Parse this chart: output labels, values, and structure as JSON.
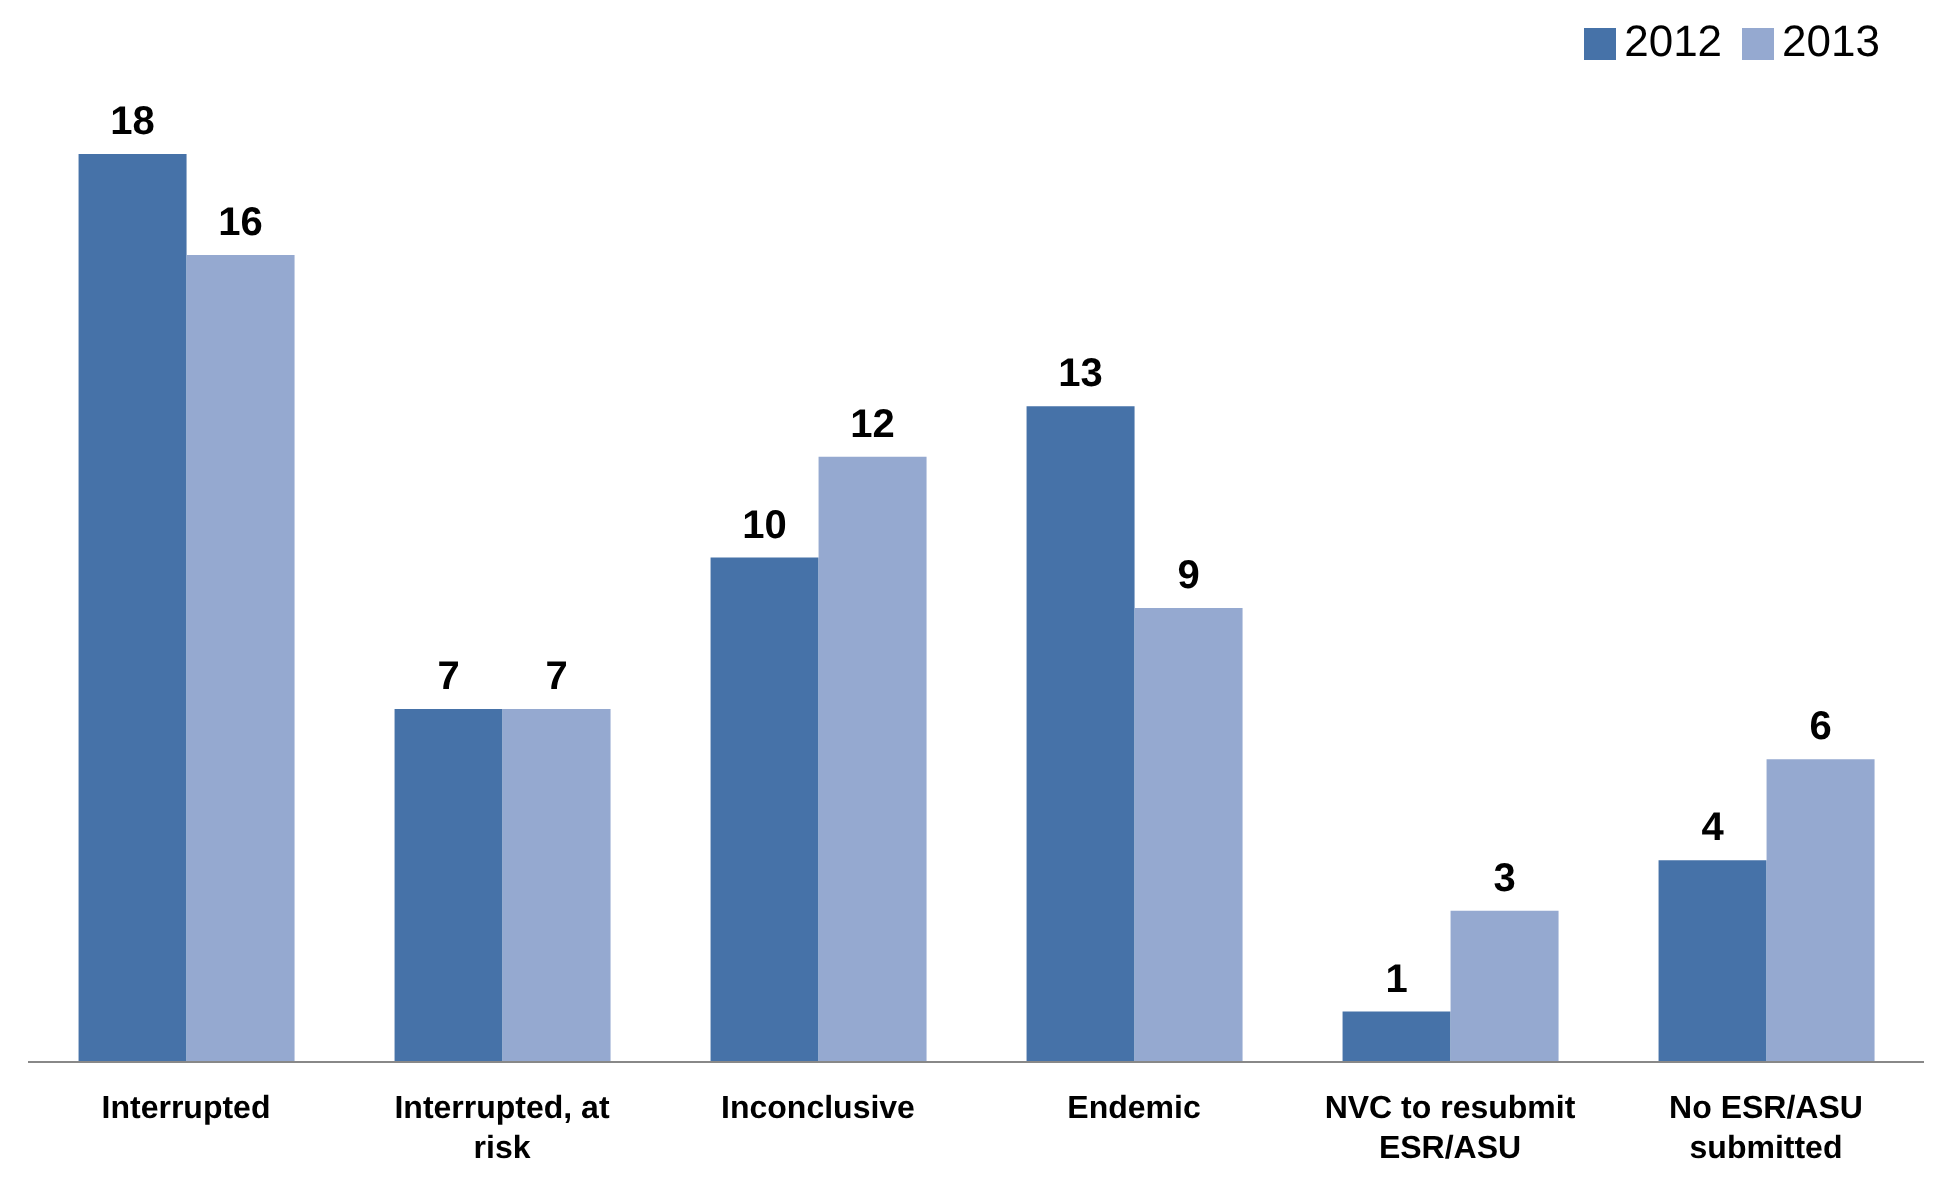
{
  "chart_data": {
    "type": "bar",
    "categories": [
      "Interrupted",
      "Interrupted, at risk",
      "Inconclusive",
      "Endemic",
      "NVC to resubmit ESR/ASU",
      "No ESR/ASU submitted"
    ],
    "series": [
      {
        "name": "2012",
        "color": "#4672a8",
        "values": [
          18,
          7,
          10,
          13,
          1,
          4
        ]
      },
      {
        "name": "2013",
        "color": "#95a9d0",
        "values": [
          16,
          7,
          12,
          9,
          3,
          6
        ]
      }
    ],
    "data_labels": true,
    "legend": "top right",
    "grid": false
  }
}
